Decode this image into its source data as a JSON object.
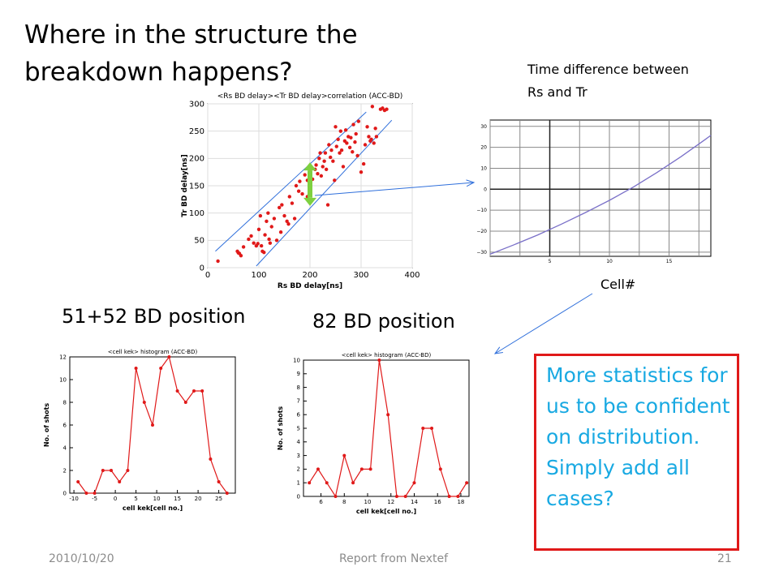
{
  "slide": {
    "title": "Where in the structure the breakdown happens?",
    "time_diff_label": "Time difference between Rs and Tr",
    "cell_label": "Cell#",
    "hist1_heading": "51+52 BD position",
    "hist2_heading": "82 BD position",
    "callout": "More statistics for us to be confident on distribution. Simply add all cases?",
    "footer_date": "2010/10/20",
    "footer_center": "Report from Nextef",
    "footer_page": "21"
  },
  "colors": {
    "data": "#e01919",
    "guide": "#2f6fdb",
    "arrow": "#7ed040",
    "curve": "#7a70c8",
    "callout_text": "#18a9e2"
  },
  "chart_data": [
    {
      "type": "scatter",
      "title": "<Rs BD delay><Tr BD delay>correlation (ACC-BD)",
      "xlabel": "Rs BD delay[ns]",
      "ylabel": "Tr BD delay[ns]",
      "xlim": [
        0,
        400
      ],
      "ylim": [
        0,
        300
      ],
      "xticks": [
        0,
        100,
        200,
        300,
        400
      ],
      "yticks": [
        0,
        50,
        100,
        150,
        200,
        250,
        300
      ],
      "grid": true,
      "points": [
        [
          20,
          12
        ],
        [
          58,
          30
        ],
        [
          60,
          27
        ],
        [
          62,
          26
        ],
        [
          65,
          22
        ],
        [
          70,
          38
        ],
        [
          80,
          52
        ],
        [
          85,
          58
        ],
        [
          90,
          45
        ],
        [
          95,
          40
        ],
        [
          98,
          44
        ],
        [
          100,
          70
        ],
        [
          103,
          95
        ],
        [
          105,
          40
        ],
        [
          107,
          30
        ],
        [
          110,
          28
        ],
        [
          112,
          60
        ],
        [
          115,
          85
        ],
        [
          118,
          100
        ],
        [
          120,
          52
        ],
        [
          122,
          45
        ],
        [
          125,
          75
        ],
        [
          130,
          90
        ],
        [
          135,
          50
        ],
        [
          140,
          110
        ],
        [
          143,
          65
        ],
        [
          145,
          115
        ],
        [
          150,
          95
        ],
        [
          155,
          85
        ],
        [
          158,
          80
        ],
        [
          160,
          130
        ],
        [
          165,
          118
        ],
        [
          170,
          90
        ],
        [
          173,
          150
        ],
        [
          178,
          140
        ],
        [
          180,
          158
        ],
        [
          185,
          135
        ],
        [
          190,
          170
        ],
        [
          195,
          160
        ],
        [
          200,
          175
        ],
        [
          205,
          162
        ],
        [
          210,
          180
        ],
        [
          212,
          188
        ],
        [
          215,
          172
        ],
        [
          218,
          200
        ],
        [
          220,
          210
        ],
        [
          222,
          168
        ],
        [
          225,
          185
        ],
        [
          228,
          195
        ],
        [
          230,
          210
        ],
        [
          232,
          180
        ],
        [
          235,
          115
        ],
        [
          237,
          225
        ],
        [
          240,
          202
        ],
        [
          242,
          215
        ],
        [
          245,
          195
        ],
        [
          248,
          160
        ],
        [
          250,
          258
        ],
        [
          252,
          222
        ],
        [
          255,
          235
        ],
        [
          258,
          210
        ],
        [
          260,
          250
        ],
        [
          262,
          215
        ],
        [
          265,
          185
        ],
        [
          268,
          232
        ],
        [
          270,
          252
        ],
        [
          272,
          228
        ],
        [
          275,
          240
        ],
        [
          278,
          220
        ],
        [
          280,
          238
        ],
        [
          283,
          212
        ],
        [
          285,
          262
        ],
        [
          288,
          230
        ],
        [
          290,
          245
        ],
        [
          293,
          205
        ],
        [
          295,
          268
        ],
        [
          300,
          175
        ],
        [
          305,
          190
        ],
        [
          308,
          225
        ],
        [
          312,
          258
        ],
        [
          315,
          240
        ],
        [
          318,
          232
        ],
        [
          320,
          235
        ],
        [
          322,
          295
        ],
        [
          325,
          228
        ],
        [
          328,
          255
        ],
        [
          330,
          240
        ],
        [
          338,
          290
        ],
        [
          342,
          292
        ],
        [
          346,
          288
        ],
        [
          350,
          290
        ],
        [
          195,
          130
        ]
      ],
      "guide_lines": [
        {
          "from": [
            15,
            30
          ],
          "to": [
            310,
            285
          ]
        },
        {
          "from": [
            95,
            3
          ],
          "to": [
            360,
            270
          ]
        }
      ]
    },
    {
      "type": "line",
      "title": "",
      "xlabel": "",
      "ylabel": "",
      "xlim": [
        0,
        18.5
      ],
      "ylim": [
        -32,
        33
      ],
      "xticks": [
        5,
        10,
        15
      ],
      "yticks": [
        -30,
        -20,
        -10,
        0,
        10,
        20,
        30
      ],
      "grid": true,
      "x": [
        0,
        2,
        4,
        6,
        8,
        10,
        12,
        14,
        16,
        18,
        18.5
      ],
      "y": [
        -31,
        -26.5,
        -21.8,
        -16.6,
        -11.1,
        -5.3,
        1.0,
        8.0,
        15.5,
        23.6,
        25.7
      ]
    },
    {
      "type": "line",
      "title": "<cell kek> histogram (ACC-BD)",
      "xlabel": "cell kek[cell no.]",
      "ylabel": "No. of shots",
      "xlim": [
        -11,
        29
      ],
      "ylim": [
        0,
        12
      ],
      "xticks": [
        -10,
        -5,
        0,
        5,
        10,
        15,
        20,
        25
      ],
      "yticks": [
        0,
        2,
        4,
        6,
        8,
        10,
        12
      ],
      "grid": false,
      "x": [
        -9,
        -7,
        -5,
        -3,
        -1,
        1,
        3,
        5,
        7,
        9,
        11,
        13,
        15,
        17,
        19,
        21,
        23,
        25,
        27
      ],
      "y": [
        1,
        0,
        0,
        2,
        2,
        1,
        2,
        11,
        8,
        6,
        11,
        12,
        9,
        8,
        9,
        9,
        3,
        1,
        0
      ]
    },
    {
      "type": "line",
      "title": "<cell kek> histogram (ACC-BD)",
      "xlabel": "cell kek[cell no.]",
      "ylabel": "No. of shots",
      "xlim": [
        4.5,
        18.7
      ],
      "ylim": [
        0,
        10
      ],
      "xticks": [
        6,
        8,
        10,
        12,
        14,
        16,
        18
      ],
      "yticks": [
        0,
        1,
        2,
        3,
        4,
        5,
        6,
        7,
        8,
        9,
        10
      ],
      "grid": false,
      "x": [
        5,
        5.75,
        6.5,
        7.25,
        8,
        8.75,
        9.5,
        10.25,
        11,
        11.75,
        12.5,
        13.25,
        14,
        14.75,
        15.5,
        16.25,
        17,
        17.75,
        18.5
      ],
      "y": [
        1,
        2,
        1,
        0,
        3,
        1,
        2,
        2,
        10,
        6,
        0,
        0,
        1,
        5,
        5,
        2,
        0,
        0,
        1
      ]
    }
  ]
}
